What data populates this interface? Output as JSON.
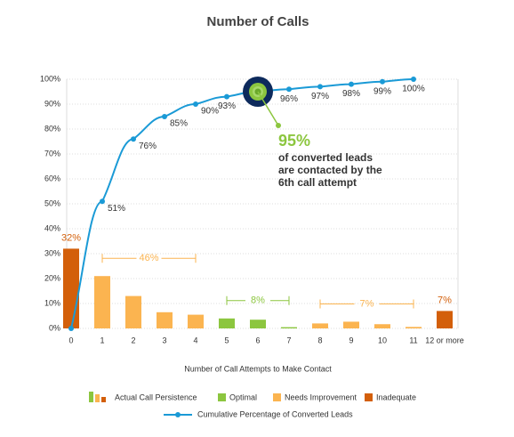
{
  "chart_data": {
    "type": "bar",
    "title": "Number of Calls",
    "x_label": "Number of Call Attempts to Make Contact",
    "categories": [
      "0",
      "1",
      "2",
      "3",
      "4",
      "5",
      "6",
      "7",
      "8",
      "9",
      "10",
      "11",
      "12 or more"
    ],
    "series": [
      {
        "name": "Actual Call Persistence",
        "type": "bar",
        "values": [
          32,
          21,
          13,
          6.5,
          5.5,
          4,
          3.5,
          0.5,
          2,
          2.7,
          1.7,
          0.6,
          7
        ],
        "value_labels": [
          "32%",
          null,
          null,
          null,
          null,
          null,
          null,
          null,
          null,
          null,
          null,
          null,
          "7%"
        ],
        "colors": [
          "#d35f0a",
          "#fbb450",
          "#fbb450",
          "#fbb450",
          "#fbb450",
          "#8cc63f",
          "#8cc63f",
          "#8cc63f",
          "#fbb450",
          "#fbb450",
          "#fbb450",
          "#fbb450",
          "#d35f0a"
        ]
      },
      {
        "name": "Cumulative Percentage of Converted Leads",
        "type": "line",
        "color": "#1a9ad6",
        "values": [
          0,
          51,
          76,
          85,
          90,
          93,
          95,
          96,
          97,
          98,
          99,
          100,
          null
        ],
        "value_labels": [
          null,
          "51%",
          "76%",
          "85%",
          "90%",
          "93%",
          null,
          "96%",
          "97%",
          "98%",
          "99%",
          "100%",
          null
        ]
      }
    ],
    "legend": [
      {
        "name": "Optimal",
        "color": "#8cc63f"
      },
      {
        "name": "Needs Improvement",
        "color": "#fbb450"
      },
      {
        "name": "Inadequate",
        "color": "#d35f0a"
      }
    ],
    "groups": [
      {
        "label": "46%",
        "from": "1",
        "to": "4",
        "color": "#fbb450"
      },
      {
        "label": "8%",
        "from": "5",
        "to": "7",
        "color": "#8cc63f"
      },
      {
        "label": "7%",
        "from": "8",
        "to": "11",
        "color": "#fbb450"
      }
    ],
    "highlight": {
      "category": "6",
      "value_label": "95%",
      "text": [
        "of converted leads",
        "are contacted by the",
        "6th call attempt"
      ],
      "color": "#8cc63f"
    },
    "ylim": [
      0,
      100
    ],
    "yticks": [
      {
        "value": 0,
        "label": "0%"
      },
      {
        "value": 10,
        "label": "10%"
      },
      {
        "value": 20,
        "label": "20%"
      },
      {
        "value": 30,
        "label": "30%"
      },
      {
        "value": 40,
        "label": "40%"
      },
      {
        "value": 50,
        "label": "50%"
      },
      {
        "value": 60,
        "label": "60%"
      },
      {
        "value": 70,
        "label": "70%"
      },
      {
        "value": 80,
        "label": "80%"
      },
      {
        "value": 90,
        "label": "90%"
      },
      {
        "value": 100,
        "label": "100%"
      }
    ],
    "grid": true
  }
}
